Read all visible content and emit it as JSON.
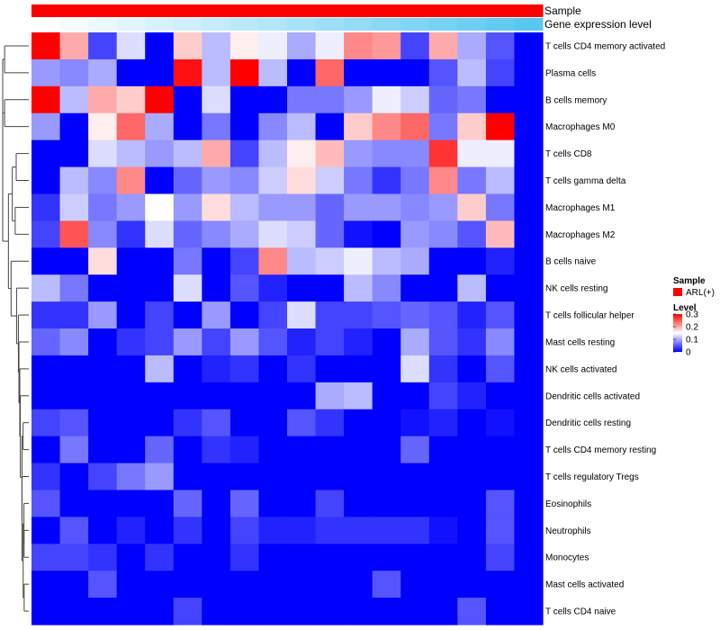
{
  "chart_data": {
    "type": "heatmap",
    "annotation_tracks": [
      {
        "name": "Sample",
        "color": "#ff0000"
      },
      {
        "name": "Gene expression level",
        "colors_low_to_high": [
          "#ffffff",
          "#59c8f0"
        ]
      }
    ],
    "legend": {
      "sample_title": "Sample",
      "sample_entry": {
        "label": "ARL(+)",
        "color": "#ff0000"
      },
      "level_title": "Level",
      "level_ticks": [
        "0.3",
        "0.2",
        "0.1",
        "0"
      ],
      "level_range": [
        0,
        0.3
      ],
      "colors": {
        "low": "#0000ff",
        "mid": "#ffffff",
        "high": "#ff0000"
      }
    },
    "rows": [
      "T cells CD4 memory activated",
      "Plasma cells",
      "B cells memory",
      "Macrophages M0",
      "T cells CD8",
      "T cells gamma delta",
      "Macrophages M1",
      "Macrophages M2",
      "B cells naive",
      "NK cells resting",
      "T cells follicular helper",
      "Mast cells resting",
      "NK cells activated",
      "Dendritic cells activated",
      "Dendritic cells resting",
      "T cells CD4 memory resting",
      "T cells regulatory  Tregs",
      "Eosinophils",
      "Neutrophils",
      "Monocytes",
      "Mast cells activated",
      "T cells CD4 naive"
    ],
    "n_columns": 18,
    "values": [
      [
        0.3,
        0.2,
        0.04,
        0.13,
        0.0,
        0.18,
        0.11,
        0.16,
        0.14,
        0.1,
        0.14,
        0.22,
        0.21,
        0.04,
        0.2,
        0.1,
        0.05,
        0.0
      ],
      [
        0.09,
        0.08,
        0.1,
        0.0,
        0.0,
        0.29,
        0.11,
        0.3,
        0.11,
        0.0,
        0.24,
        0.0,
        0.0,
        0.0,
        0.05,
        0.11,
        0.04,
        0.0
      ],
      [
        0.3,
        0.11,
        0.2,
        0.18,
        0.3,
        0.0,
        0.13,
        0.0,
        0.0,
        0.07,
        0.07,
        0.09,
        0.14,
        0.12,
        0.06,
        0.07,
        0.0,
        0.0
      ],
      [
        0.09,
        0.0,
        0.16,
        0.24,
        0.1,
        0.0,
        0.07,
        0.0,
        0.08,
        0.11,
        0.0,
        0.18,
        0.22,
        0.24,
        0.07,
        0.18,
        0.3,
        0.0
      ],
      [
        0.0,
        0.0,
        0.13,
        0.11,
        0.09,
        0.11,
        0.2,
        0.04,
        0.11,
        0.16,
        0.19,
        0.09,
        0.08,
        0.08,
        0.27,
        0.14,
        0.14,
        0.0
      ],
      [
        0.0,
        0.11,
        0.08,
        0.22,
        0.0,
        0.06,
        0.09,
        0.08,
        0.12,
        0.17,
        0.12,
        0.07,
        0.03,
        0.07,
        0.22,
        0.07,
        0.11,
        0.0
      ],
      [
        0.03,
        0.12,
        0.07,
        0.09,
        0.15,
        0.09,
        0.17,
        0.11,
        0.09,
        0.09,
        0.06,
        0.09,
        0.09,
        0.08,
        0.09,
        0.18,
        0.07,
        0.0
      ],
      [
        0.04,
        0.25,
        0.08,
        0.03,
        0.13,
        0.06,
        0.08,
        0.1,
        0.13,
        0.12,
        0.06,
        0.01,
        0.0,
        0.09,
        0.08,
        0.05,
        0.19,
        0.0
      ],
      [
        0.0,
        0.0,
        0.17,
        0.0,
        0.0,
        0.07,
        0.0,
        0.04,
        0.22,
        0.11,
        0.12,
        0.14,
        0.11,
        0.1,
        0.0,
        0.0,
        0.02,
        0.0
      ],
      [
        0.11,
        0.07,
        0.0,
        0.0,
        0.0,
        0.13,
        0.0,
        0.05,
        0.02,
        0.0,
        0.0,
        0.11,
        0.08,
        0.0,
        0.0,
        0.11,
        0.0,
        0.0
      ],
      [
        0.03,
        0.03,
        0.09,
        0.0,
        0.04,
        0.0,
        0.09,
        0.0,
        0.04,
        0.13,
        0.04,
        0.04,
        0.05,
        0.06,
        0.05,
        0.02,
        0.05,
        0.0
      ],
      [
        0.06,
        0.08,
        0.0,
        0.03,
        0.04,
        0.09,
        0.04,
        0.09,
        0.05,
        0.02,
        0.04,
        0.02,
        0.0,
        0.1,
        0.05,
        0.03,
        0.08,
        0.0
      ],
      [
        0.0,
        0.0,
        0.0,
        0.0,
        0.11,
        0.0,
        0.02,
        0.03,
        0.0,
        0.03,
        0.0,
        0.0,
        0.0,
        0.13,
        0.03,
        0.0,
        0.05,
        0.0
      ],
      [
        0.0,
        0.0,
        0.0,
        0.0,
        0.0,
        0.0,
        0.0,
        0.0,
        0.0,
        0.0,
        0.1,
        0.11,
        0.0,
        0.0,
        0.04,
        0.02,
        0.0,
        0.0
      ],
      [
        0.04,
        0.05,
        0.0,
        0.0,
        0.0,
        0.03,
        0.05,
        0.0,
        0.0,
        0.05,
        0.03,
        0.0,
        0.0,
        0.01,
        0.02,
        0.0,
        0.01,
        0.0
      ],
      [
        0.0,
        0.07,
        0.0,
        0.0,
        0.06,
        0.0,
        0.03,
        0.02,
        0.0,
        0.0,
        0.0,
        0.0,
        0.0,
        0.06,
        0.0,
        0.0,
        0.0,
        0.0
      ],
      [
        0.03,
        0.0,
        0.04,
        0.07,
        0.09,
        0.0,
        0.0,
        0.0,
        0.0,
        0.0,
        0.0,
        0.0,
        0.0,
        0.0,
        0.0,
        0.0,
        0.0,
        0.0
      ],
      [
        0.05,
        0.0,
        0.0,
        0.0,
        0.0,
        0.06,
        0.0,
        0.06,
        0.0,
        0.0,
        0.04,
        0.0,
        0.0,
        0.0,
        0.0,
        0.0,
        0.05,
        0.0
      ],
      [
        0.0,
        0.05,
        0.0,
        0.02,
        0.0,
        0.03,
        0.0,
        0.04,
        0.02,
        0.02,
        0.03,
        0.03,
        0.03,
        0.03,
        0.01,
        0.0,
        0.05,
        0.0
      ],
      [
        0.04,
        0.04,
        0.03,
        0.0,
        0.03,
        0.0,
        0.0,
        0.03,
        0.0,
        0.0,
        0.0,
        0.0,
        0.0,
        0.0,
        0.0,
        0.0,
        0.04,
        0.0
      ],
      [
        0.0,
        0.0,
        0.05,
        0.0,
        0.0,
        0.0,
        0.0,
        0.0,
        0.0,
        0.0,
        0.0,
        0.0,
        0.05,
        0.0,
        0.0,
        0.0,
        0.0,
        0.0
      ],
      [
        0.0,
        0.0,
        0.0,
        0.0,
        0.0,
        0.04,
        0.0,
        0.0,
        0.0,
        0.0,
        0.0,
        0.0,
        0.0,
        0.0,
        0.0,
        0.05,
        0.0,
        0.0
      ]
    ],
    "row_dendrogram": true,
    "column_dendrogram": false
  }
}
